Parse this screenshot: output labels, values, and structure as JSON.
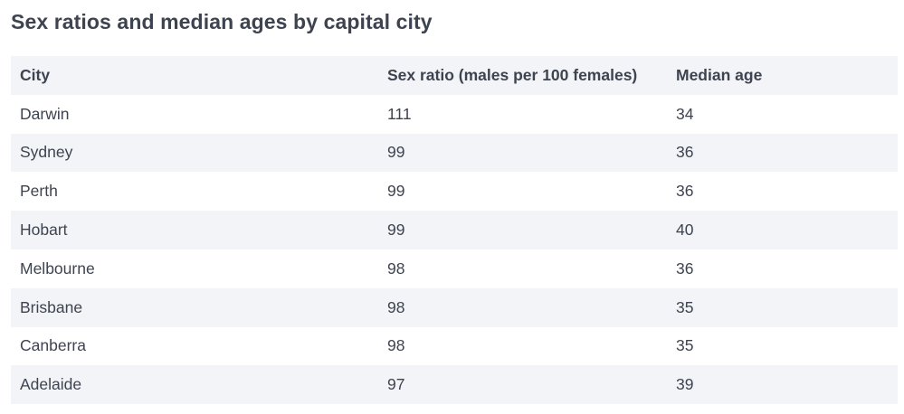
{
  "title": "Sex ratios and median ages by capital city",
  "table": {
    "headers": [
      "City",
      "Sex ratio (males per 100 females)",
      "Median age"
    ],
    "rows": [
      [
        "Darwin",
        "111",
        "34"
      ],
      [
        "Sydney",
        "99",
        "36"
      ],
      [
        "Perth",
        "99",
        "36"
      ],
      [
        "Hobart",
        "99",
        "40"
      ],
      [
        "Melbourne",
        "98",
        "36"
      ],
      [
        "Brisbane",
        "98",
        "35"
      ],
      [
        "Canberra",
        "98",
        "35"
      ],
      [
        "Adelaide",
        "97",
        "39"
      ]
    ]
  },
  "colors": {
    "text": "#3e4350",
    "row_shade": "#f2f4f7",
    "background": "#ffffff"
  }
}
